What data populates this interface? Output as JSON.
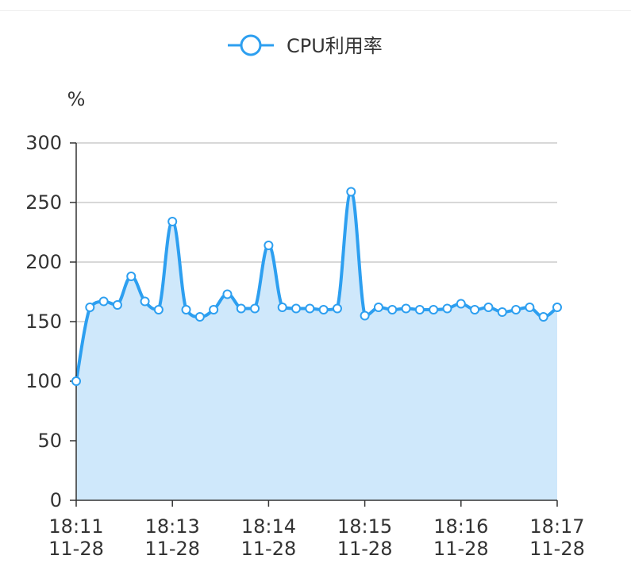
{
  "colors": {
    "series": "#2d9ff0",
    "area": "#cfe8fb",
    "grid": "#cccccc",
    "axis": "#333333",
    "text": "#333333"
  },
  "chart_data": {
    "type": "area",
    "legend": {
      "position": "top-center",
      "items": [
        "CPU利用率"
      ]
    },
    "y_unit": "%",
    "ylim": [
      0,
      300
    ],
    "y_ticks": [
      "0",
      "50",
      "100",
      "150",
      "200",
      "250",
      "300"
    ],
    "y_tick_values": [
      0,
      50,
      100,
      150,
      200,
      250,
      300
    ],
    "grid": true,
    "x_ticks": [
      {
        "time": "18:11",
        "date": "11-28",
        "index": 0
      },
      {
        "time": "18:13",
        "date": "11-28",
        "index": 7
      },
      {
        "time": "18:14",
        "date": "11-28",
        "index": 14
      },
      {
        "time": "18:15",
        "date": "11-28",
        "index": 21
      },
      {
        "time": "18:16",
        "date": "11-28",
        "index": 28
      },
      {
        "time": "18:17",
        "date": "11-28",
        "index": 35
      }
    ],
    "series": [
      {
        "name": "CPU利用率",
        "smooth": true,
        "area": true,
        "values": [
          100,
          162,
          167,
          164,
          188,
          167,
          160,
          234,
          160,
          154,
          160,
          173,
          161,
          161,
          214,
          162,
          161,
          161,
          160,
          161,
          259,
          155,
          162,
          160,
          161,
          160,
          160,
          161,
          165,
          160,
          162,
          158,
          160,
          162,
          154,
          162
        ]
      }
    ]
  }
}
